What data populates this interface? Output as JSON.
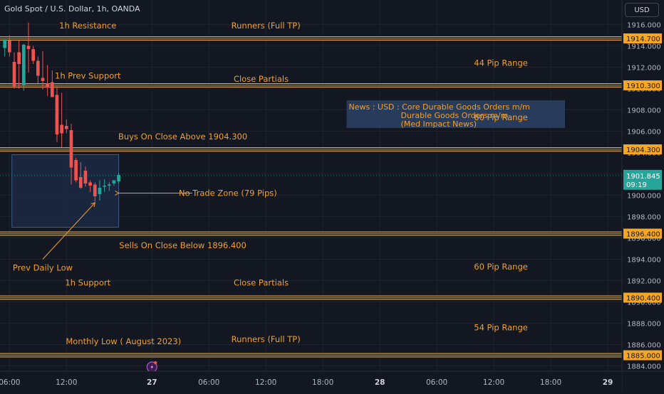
{
  "header": {
    "title": "Gold Spot / U.S. Dollar, 1h, OANDA",
    "currency": "USD"
  },
  "colors": {
    "background": "#131722",
    "up": "#26a69a",
    "down": "#ef5350",
    "annotation": "#f0a030",
    "level_band": "#ffb74d",
    "price_tag": "#f5a623",
    "current_tag": "#26a69a",
    "zone_fill": "#1e2c48",
    "zone_border": "#3d5a8c"
  },
  "chart_data": {
    "type": "candlestick",
    "symbol": "Gold Spot / U.S. Dollar",
    "timeframe": "1h",
    "source": "OANDA",
    "ylim": [
      1883.5,
      1918.3
    ],
    "y_ticks": [
      1884.0,
      1886.0,
      1888.0,
      1890.0,
      1892.0,
      1894.0,
      1896.0,
      1898.0,
      1900.0,
      1902.0,
      1904.0,
      1906.0,
      1908.0,
      1910.0,
      1912.0,
      1914.0,
      1916.0
    ],
    "y_tick_labels": [
      "1884.000",
      "1886.000",
      "1888.000",
      "1890.000",
      "1892.000",
      "1894.000",
      "1896.000",
      "1898.000",
      "1900.000",
      "1902.000",
      "1904.000",
      "1906.000",
      "1908.000",
      "1910.000",
      "1912.000",
      "1914.000",
      "1916.000"
    ],
    "x_ticks": [
      {
        "bar": 1,
        "label": "06:00",
        "bold": false
      },
      {
        "bar": 13,
        "label": "12:00",
        "bold": false
      },
      {
        "bar": 31,
        "label": "27",
        "bold": true
      },
      {
        "bar": 43,
        "label": "06:00",
        "bold": false
      },
      {
        "bar": 55,
        "label": "12:00",
        "bold": false
      },
      {
        "bar": 67,
        "label": "18:00",
        "bold": false
      },
      {
        "bar": 79,
        "label": "28",
        "bold": true
      },
      {
        "bar": 91,
        "label": "06:00",
        "bold": false
      },
      {
        "bar": 103,
        "label": "12:00",
        "bold": false
      },
      {
        "bar": 115,
        "label": "18:00",
        "bold": false
      },
      {
        "bar": 127,
        "label": "29",
        "bold": true
      }
    ],
    "bar_range": [
      -1,
      130
    ],
    "candles": [
      {
        "o": 1913.8,
        "h": 1914.5,
        "l": 1913.0,
        "c": 1914.6
      },
      {
        "o": 1914.5,
        "h": 1915.0,
        "l": 1913.0,
        "c": 1913.4
      },
      {
        "o": 1912.5,
        "h": 1913.4,
        "l": 1910.0,
        "c": 1910.2
      },
      {
        "o": 1913.4,
        "h": 1914.5,
        "l": 1910.0,
        "c": 1912.3
      },
      {
        "o": 1910.3,
        "h": 1914.2,
        "l": 1909.8,
        "c": 1914.1
      },
      {
        "o": 1914.0,
        "h": 1916.2,
        "l": 1911.5,
        "c": 1913.7
      },
      {
        "o": 1913.7,
        "h": 1914.0,
        "l": 1912.3,
        "c": 1912.6
      },
      {
        "o": 1912.6,
        "h": 1913.0,
        "l": 1910.5,
        "c": 1911.2
      },
      {
        "o": 1911.0,
        "h": 1913.5,
        "l": 1909.9,
        "c": 1910.7
      },
      {
        "o": 1910.5,
        "h": 1912.2,
        "l": 1909.3,
        "c": 1910.1
      },
      {
        "o": 1910.6,
        "h": 1911.7,
        "l": 1909.2,
        "c": 1909.2
      },
      {
        "o": 1909.4,
        "h": 1910.2,
        "l": 1905.0,
        "c": 1905.7
      },
      {
        "o": 1906.6,
        "h": 1909.6,
        "l": 1904.5,
        "c": 1905.8
      },
      {
        "o": 1906.5,
        "h": 1907.1,
        "l": 1905.8,
        "c": 1906.2
      },
      {
        "o": 1906.1,
        "h": 1906.7,
        "l": 1901.0,
        "c": 1902.6
      },
      {
        "o": 1903.3,
        "h": 1903.5,
        "l": 1901.2,
        "c": 1901.4
      },
      {
        "o": 1901.7,
        "h": 1903.1,
        "l": 1900.6,
        "c": 1900.7
      },
      {
        "o": 1902.3,
        "h": 1902.7,
        "l": 1900.8,
        "c": 1901.1
      },
      {
        "o": 1901.2,
        "h": 1901.4,
        "l": 1900.3,
        "c": 1900.9
      },
      {
        "o": 1901.0,
        "h": 1901.2,
        "l": 1899.4,
        "c": 1899.9
      },
      {
        "o": 1900.1,
        "h": 1901.4,
        "l": 1899.5,
        "c": 1900.7
      },
      {
        "o": 1900.8,
        "h": 1901.5,
        "l": 1900.3,
        "c": 1900.9
      },
      {
        "o": 1900.9,
        "h": 1901.2,
        "l": 1900.4,
        "c": 1901.0
      },
      {
        "o": 1901.1,
        "h": 1901.4,
        "l": 1900.9,
        "c": 1901.4
      },
      {
        "o": 1901.3,
        "h": 1902.1,
        "l": 1901.1,
        "c": 1901.9
      }
    ],
    "levels": [
      {
        "price": 1914.7,
        "label": "1914.700"
      },
      {
        "price": 1910.3,
        "label": "1910.300"
      },
      {
        "price": 1904.3,
        "label": "1904.300"
      },
      {
        "price": 1896.4,
        "label": "1896.400"
      },
      {
        "price": 1890.4,
        "label": "1890.400"
      },
      {
        "price": 1885.0,
        "label": "1885.000"
      }
    ],
    "current_price": {
      "price": 1901.845,
      "label": "1901.845",
      "countdown": "09:19"
    },
    "no_trade_zone": {
      "bar_start": 1.5,
      "bar_end": 24,
      "price_top": 1903.8,
      "price_bottom": 1897.0
    },
    "annotations": [
      {
        "text": "1h Resistance",
        "bar": 17.5,
        "price": 1915.9
      },
      {
        "text": "Runners (Full TP)",
        "bar": 55,
        "price": 1915.9
      },
      {
        "text": "44 Pip Range",
        "bar": 104.5,
        "price": 1912.4
      },
      {
        "text": "1h Prev Support",
        "bar": 17.5,
        "price": 1911.2
      },
      {
        "text": "Close Partials",
        "bar": 54,
        "price": 1910.9
      },
      {
        "text": "60 Pip Range",
        "bar": 104.5,
        "price": 1907.3
      },
      {
        "text": "Buys On Close Above 1904.300",
        "bar": 37.5,
        "price": 1905.5
      },
      {
        "text": "No Trade Zone (79 Pips)",
        "bar": 47,
        "price": 1900.2
      },
      {
        "text": "Sells On Close Below 1896.400",
        "bar": 37.5,
        "price": 1895.3
      },
      {
        "text": "Prev Daily Low",
        "bar": 8,
        "price": 1893.2
      },
      {
        "text": "60 Pip Range",
        "bar": 104.5,
        "price": 1893.3
      },
      {
        "text": "1h Support",
        "bar": 17.5,
        "price": 1891.8
      },
      {
        "text": "Close Partials",
        "bar": 54,
        "price": 1891.8
      },
      {
        "text": "54 Pip Range",
        "bar": 104.5,
        "price": 1887.6
      },
      {
        "text": "Monthly Low ( August 2023)",
        "bar": 25,
        "price": 1886.3
      },
      {
        "text": "Runners (Full TP)",
        "bar": 55,
        "price": 1886.5
      }
    ],
    "news_box": {
      "lines": [
        "News : USD : Core Durable Goods Orders m/m",
        "Durable Goods Orders m/m",
        "(Med Impact News)"
      ]
    }
  }
}
